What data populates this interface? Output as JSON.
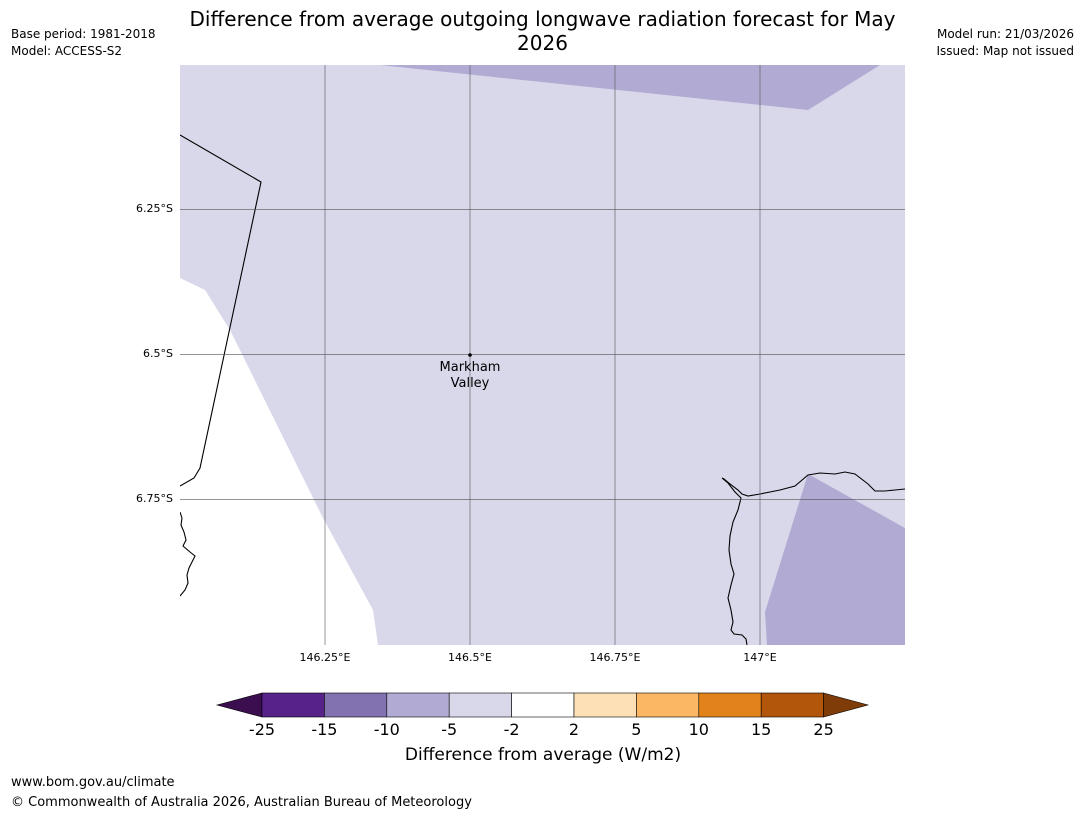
{
  "title": "Difference from average outgoing longwave radiation forecast for May 2026",
  "meta_left": {
    "base_period": "Base period: 1981-2018",
    "model": "Model: ACCESS-S2"
  },
  "meta_right": {
    "model_run": "Model run: 21/03/2026",
    "issued": "Issued: Map not issued"
  },
  "map": {
    "lat_labels": [
      "6.25°S",
      "6.5°S",
      "6.75°S"
    ],
    "lon_labels": [
      "146.25°E",
      "146.5°E",
      "146.75°E",
      "147°E"
    ],
    "place": {
      "name": "Markham Valley",
      "lon": 146.5,
      "lat": -6.5
    }
  },
  "legend": {
    "title": "Difference from average (W/m2)",
    "ticks": [
      "-25",
      "-15",
      "-10",
      "-5",
      "-2",
      "2",
      "5",
      "10",
      "15",
      "25"
    ],
    "colors": {
      "under": "#3b0f4f",
      "bins": [
        "#57238a",
        "#8273b0",
        "#b1aad2",
        "#d8d8ea",
        "#ffffff",
        "#fde0b6",
        "#fbb763",
        "#e2821a",
        "#b1560a"
      ],
      "over": "#7f3b08"
    }
  },
  "footer": {
    "url": "www.bom.gov.au/climate",
    "copyright": "© Commonwealth of Australia 2026, Australian Bureau of Meteorology"
  }
}
